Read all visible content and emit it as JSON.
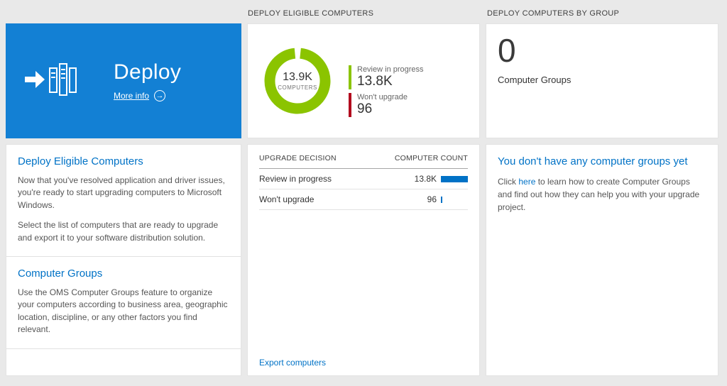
{
  "colors": {
    "tile_blue": "#1380d4",
    "link_blue": "#0072c6",
    "green": "#8bc400",
    "red": "#b20a1e",
    "bar_blue": "#0072c6",
    "background": "#e9e9e9"
  },
  "headers": {
    "middle": "DEPLOY ELIGIBLE COMPUTERS",
    "right": "DEPLOY COMPUTERS BY GROUP"
  },
  "icons": {
    "more_info_arrow": "→"
  },
  "tile": {
    "title": "Deploy",
    "more_info_label": "More info"
  },
  "left_card": {
    "section1": {
      "heading": "Deploy Eligible Computers",
      "p1": "Now that you've resolved application and driver issues, you're ready to start upgrading computers to Microsoft Windows.",
      "p2": "Select the list of computers that are ready to upgrade and export it to your software distribution solution."
    },
    "section2": {
      "heading": "Computer Groups",
      "p1": "Use the OMS Computer Groups feature to organize your computers according to business area, geographic location, discipline, or any other factors you find relevant."
    }
  },
  "chart_data": {
    "type": "donut",
    "title": "DEPLOY ELIGIBLE COMPUTERS",
    "center_value": "13.9K",
    "center_label": "COMPUTERS",
    "total": 13900,
    "legend_position": "right",
    "segments": [
      {
        "label": "Review in progress",
        "value": 13800,
        "display": "13.8K",
        "color": "#8bc400"
      },
      {
        "label": "Won't upgrade",
        "value": 96,
        "display": "96",
        "color": "#b20a1e"
      }
    ]
  },
  "table": {
    "col1": "UPGRADE DECISION",
    "col2": "COMPUTER COUNT",
    "rows": [
      {
        "label": "Review in progress",
        "value": "13.8K",
        "bar_pct": 100
      },
      {
        "label": "Won't upgrade",
        "value": "96",
        "bar_pct": 1
      }
    ],
    "export_link": "Export computers"
  },
  "groups_tile": {
    "count": "0",
    "label": "Computer Groups"
  },
  "groups_info": {
    "heading": "You don't have any computer groups yet",
    "before_link": "Click ",
    "link": "here",
    "after_link": " to learn how to create Computer Groups and find out how they can help you with your upgrade project."
  }
}
